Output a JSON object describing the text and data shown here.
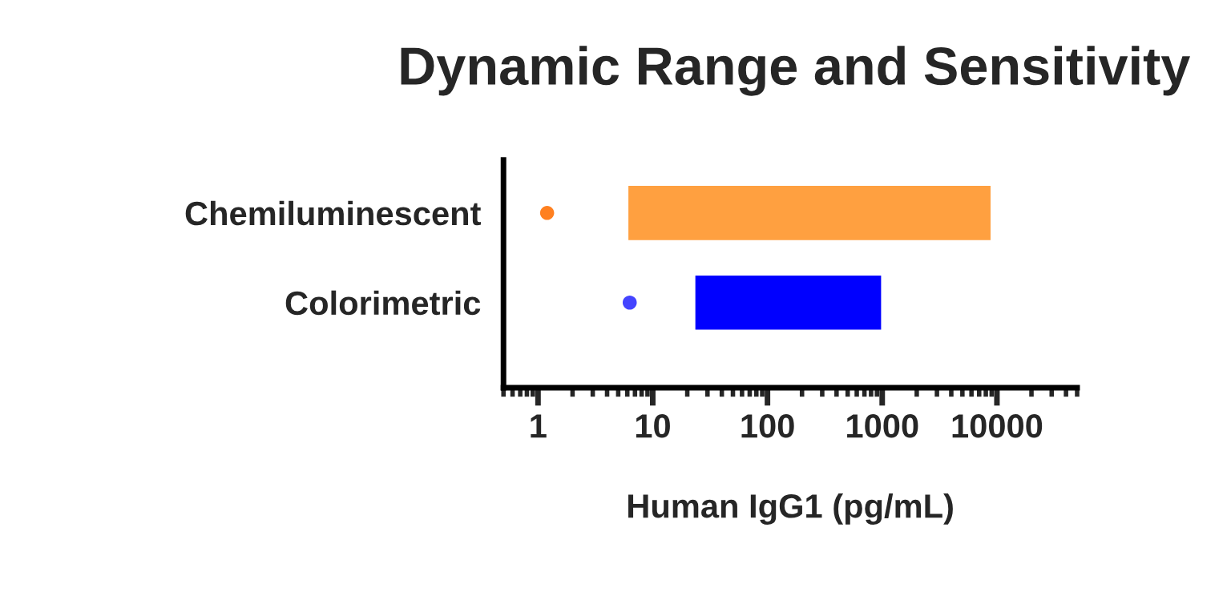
{
  "chart_data": {
    "type": "bar",
    "orientation": "horizontal",
    "title": "Dynamic Range and Sensitivity",
    "xlabel": "Human IgG1 (pg/mL)",
    "categories": [
      "Chemiluminescent",
      "Colorimetric"
    ],
    "log": "x",
    "xlim": [
      0.5,
      50000
    ],
    "xticks": [
      1,
      10,
      100,
      1000,
      10000
    ],
    "grid": false,
    "legend": false,
    "series": [
      {
        "base": [
          6,
          23
        ],
        "values": [
          8994,
          977
        ],
        "colors": [
          "#ffa040",
          "#0000ff"
        ]
      },
      {
        "type": "scatter",
        "x": [
          "Chemiluminescent",
          "Colorimetric"
        ],
        "values": [
          1.2,
          6.3
        ],
        "colors": [
          "#ff8020",
          "#4444ff"
        ],
        "marker": "circle"
      }
    ]
  }
}
